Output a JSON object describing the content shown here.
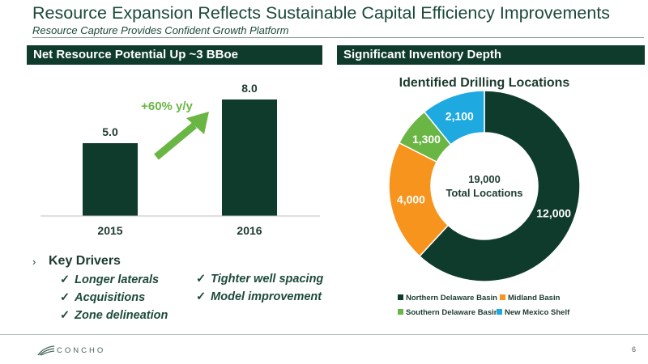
{
  "header": {
    "title": "Resource Expansion Reflects Sustainable Capital Efficiency Improvements",
    "subtitle": "Resource Capture Provides Confident Growth Platform"
  },
  "left_panel": {
    "header": "Net Resource Potential Up ~3 BBoe"
  },
  "right_panel": {
    "header": "Significant Inventory Depth"
  },
  "chart_data": [
    {
      "type": "bar",
      "title": "",
      "categories": [
        "2015",
        "2016"
      ],
      "values": [
        5.0,
        8.0
      ],
      "value_labels": [
        "5.0",
        "8.0"
      ],
      "ylim": [
        0,
        8.0
      ],
      "bar_color": "#0f3b2d",
      "annotation": {
        "text": "+60% y/y",
        "color": "#6ab645"
      }
    },
    {
      "type": "pie",
      "donut": true,
      "title": "Identified Drilling Locations",
      "center_label": [
        "19,000",
        "Total Locations"
      ],
      "slices": [
        {
          "name": "Northern Delaware Basin",
          "value": 12000,
          "label": "12,000",
          "color": "#0f3b2d"
        },
        {
          "name": "Midland Basin",
          "value": 4000,
          "label": "4,000",
          "color": "#f7941d"
        },
        {
          "name": "Southern Delaware Basin",
          "value": 1300,
          "label": "1,300",
          "color": "#6ab645"
        },
        {
          "name": "New Mexico Shelf",
          "value": 2100,
          "label": "2,100",
          "color": "#1fa9e1"
        }
      ],
      "legend_position": "bottom"
    }
  ],
  "drivers": {
    "heading": "Key Drivers",
    "chevron": "›",
    "check": "✓",
    "col1": [
      "Longer laterals",
      "Acquisitions",
      "Zone delineation"
    ],
    "col2": [
      "Tighter well spacing",
      "Model improvement"
    ]
  },
  "footer": {
    "logo_text": "CONCHO",
    "page_number": "6"
  },
  "colors": {
    "brand_dark": "#0f3b2d",
    "accent_green": "#6ab645"
  }
}
